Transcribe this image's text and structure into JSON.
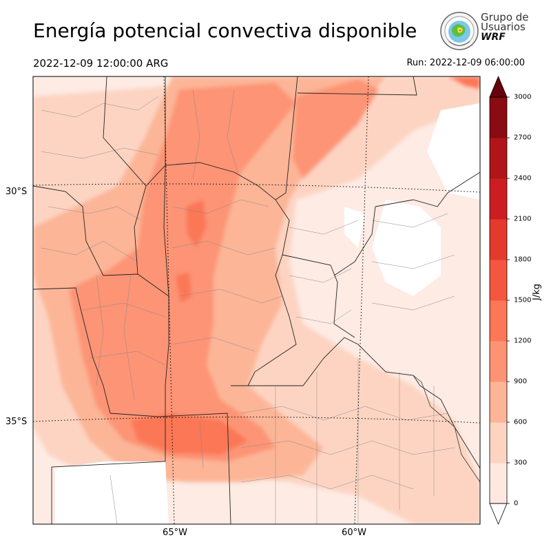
{
  "title": "Energía potencial convectiva disponible",
  "valid_time": "2022-12-09 12:00:00 ARG",
  "run_time": "Run: 2022-12-09 06:00:00",
  "logo": {
    "line1": "Grupo de",
    "line2": "Usuarios",
    "line3": "WRF"
  },
  "lat_labels": [
    "30°S",
    "35°S"
  ],
  "lon_labels": [
    "65°W",
    "60°W"
  ],
  "colorbar": {
    "unit": "J/kg",
    "ticks": [
      "0",
      "300",
      "600",
      "900",
      "1200",
      "1500",
      "1800",
      "2100",
      "2400",
      "2700",
      "3000"
    ],
    "colors": [
      "#fee8e0",
      "#fdd4c2",
      "#fcb597",
      "#fc9474",
      "#fb7757",
      "#f4563f",
      "#e43a2e",
      "#cc1e21",
      "#b01519",
      "#8a0b12"
    ],
    "over_color": "#67000d",
    "under_color": "#ffffff"
  }
}
